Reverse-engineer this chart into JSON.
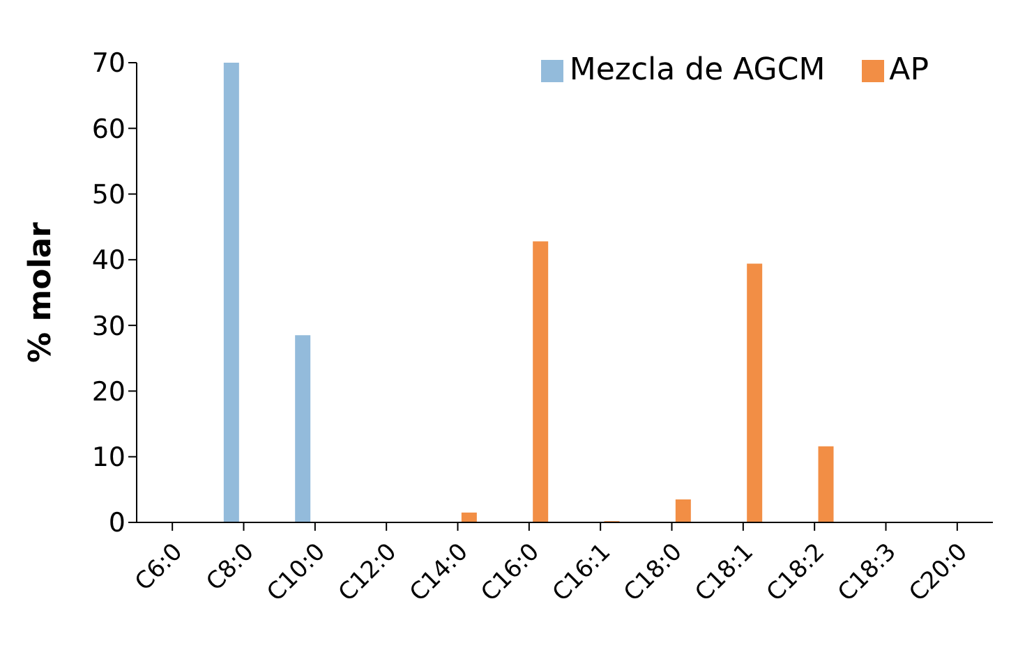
{
  "chart_data": {
    "type": "bar",
    "ylabel": "% molar",
    "categories": [
      "C6:0",
      "C8:0",
      "C10:0",
      "C12:0",
      "C14:0",
      "C16:0",
      "C16:1",
      "C18:0",
      "C18:1",
      "C18:2",
      "C18:3",
      "C20:0"
    ],
    "series": [
      {
        "name": "Mezcla de AGCM",
        "color": "#93bbdb",
        "values": [
          0,
          70,
          28.5,
          0,
          0,
          0,
          0,
          0,
          0,
          0,
          0,
          0
        ]
      },
      {
        "name": "AP",
        "color": "#f28e45",
        "values": [
          0,
          0,
          0,
          0,
          1.5,
          42.8,
          0.2,
          3.5,
          39.4,
          11.6,
          0,
          0
        ]
      }
    ],
    "ylim": [
      0,
      70
    ],
    "yticks": [
      0,
      10,
      20,
      30,
      40,
      50,
      60,
      70
    ],
    "grid": false,
    "legend": "top right"
  }
}
